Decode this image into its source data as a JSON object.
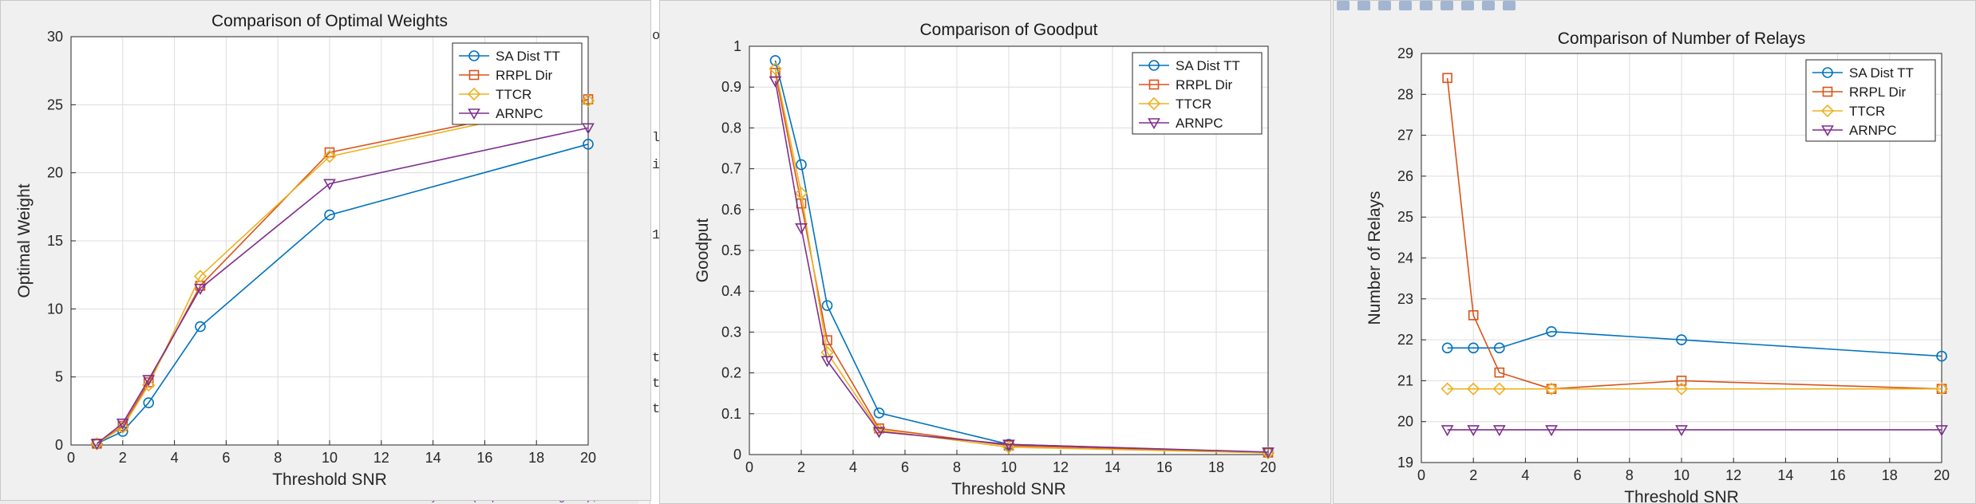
{
  "colors": {
    "sa_dist_tt": "#0072BD",
    "rrpl_dir": "#D95319",
    "ttcr": "#EDB120",
    "arnpc": "#7E2F8E",
    "grid": "#dddddd",
    "axes_bg": "#ffffff",
    "figure_bg": "#f0f0f0"
  },
  "legend": {
    "entries": [
      "SA Dist TT",
      "RRPL Dir",
      "TTCR",
      "ARNPC"
    ],
    "markers": [
      "circle",
      "square",
      "diamond",
      "triangle-down"
    ],
    "placement": "top-right"
  },
  "background": {
    "code_fragments": [
      "ot",
      "la",
      "it",
      "1",
      "ti",
      "ti",
      "ti",
      "ylabel('Optimal Weight');"
    ]
  },
  "chart_data": [
    {
      "type": "line",
      "title": "Comparison of Optimal Weights",
      "xlabel": "Threshold SNR",
      "ylabel": "Optimal Weight",
      "x": [
        1,
        2,
        3,
        5,
        10,
        20
      ],
      "xlim": [
        0,
        20
      ],
      "ylim": [
        0,
        30
      ],
      "xticks": [
        "0",
        "2",
        "4",
        "6",
        "8",
        "10",
        "12",
        "14",
        "16",
        "18",
        "20"
      ],
      "yticks": [
        "0",
        "5",
        "10",
        "15",
        "20",
        "25",
        "30"
      ],
      "grid": true,
      "series": [
        {
          "name": "SA Dist TT",
          "values": [
            0.1,
            1.0,
            3.1,
            8.7,
            16.9,
            22.1
          ]
        },
        {
          "name": "RRPL Dir",
          "values": [
            0.1,
            1.4,
            4.6,
            11.7,
            21.5,
            25.4
          ]
        },
        {
          "name": "TTCR",
          "values": [
            0.1,
            1.3,
            4.4,
            12.4,
            21.2,
            25.3
          ]
        },
        {
          "name": "ARNPC",
          "values": [
            0.1,
            1.6,
            4.8,
            11.5,
            19.2,
            23.3
          ]
        }
      ]
    },
    {
      "type": "line",
      "title": "Comparison of Goodput",
      "xlabel": "Threshold SNR",
      "ylabel": "Goodput",
      "x": [
        1,
        2,
        3,
        5,
        10,
        20
      ],
      "xlim": [
        0,
        20
      ],
      "ylim": [
        0,
        1
      ],
      "xticks": [
        "0",
        "2",
        "4",
        "6",
        "8",
        "10",
        "12",
        "14",
        "16",
        "18",
        "20"
      ],
      "yticks": [
        "0",
        "0.1",
        "0.2",
        "0.3",
        "0.4",
        "0.5",
        "0.6",
        "0.7",
        "0.8",
        "0.9",
        "1"
      ],
      "grid": true,
      "series": [
        {
          "name": "SA Dist TT",
          "values": [
            0.965,
            0.71,
            0.365,
            0.102,
            0.025,
            0.005
          ]
        },
        {
          "name": "RRPL Dir",
          "values": [
            0.935,
            0.615,
            0.28,
            0.064,
            0.022,
            0.005
          ]
        },
        {
          "name": "TTCR",
          "values": [
            0.945,
            0.64,
            0.25,
            0.06,
            0.018,
            0.004
          ]
        },
        {
          "name": "ARNPC",
          "values": [
            0.915,
            0.555,
            0.23,
            0.056,
            0.025,
            0.006
          ]
        }
      ]
    },
    {
      "type": "line",
      "title": "Comparison of Number of Relays",
      "xlabel": "Threshold SNR",
      "ylabel": "Number of Relays",
      "x": [
        1,
        2,
        3,
        5,
        10,
        20
      ],
      "xlim": [
        0,
        20
      ],
      "ylim": [
        19,
        29
      ],
      "xticks": [
        "0",
        "2",
        "4",
        "6",
        "8",
        "10",
        "12",
        "14",
        "16",
        "18",
        "20"
      ],
      "yticks": [
        "19",
        "20",
        "21",
        "22",
        "23",
        "24",
        "25",
        "26",
        "27",
        "28",
        "29"
      ],
      "grid": true,
      "series": [
        {
          "name": "SA Dist TT",
          "values": [
            21.8,
            21.8,
            21.8,
            22.2,
            22.0,
            21.6
          ]
        },
        {
          "name": "RRPL Dir",
          "values": [
            28.4,
            22.6,
            21.2,
            20.8,
            21.0,
            20.8
          ]
        },
        {
          "name": "TTCR",
          "values": [
            20.8,
            20.8,
            20.8,
            20.8,
            20.8,
            20.8
          ]
        },
        {
          "name": "ARNPC",
          "values": [
            19.8,
            19.8,
            19.8,
            19.8,
            19.8,
            19.8
          ]
        }
      ]
    }
  ]
}
